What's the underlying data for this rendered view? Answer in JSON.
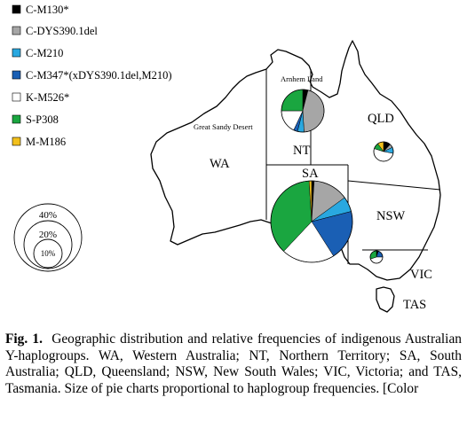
{
  "legend": [
    {
      "label": "C-M130*",
      "color": "#000000"
    },
    {
      "label": "C-DYS390.1del",
      "color": "#a6a6a6"
    },
    {
      "label": "C-M210",
      "color": "#29a8e0"
    },
    {
      "label": "C-M347*(xDYS390.1del,M210)",
      "color": "#1a5fb4"
    },
    {
      "label": "K-M526*",
      "color": "#ffffff"
    },
    {
      "label": "S-P308",
      "color": "#1aa640"
    },
    {
      "label": "M-M186",
      "color": "#f2c01c"
    }
  ],
  "places": {
    "arnhem": "Arnhem Land",
    "gsd": "Great Sandy Desert"
  },
  "states": {
    "wa": "WA",
    "nt": "NT",
    "sa": "SA",
    "qld": "QLD",
    "nsw": "NSW",
    "vic": "VIC",
    "tas": "TAS"
  },
  "scale_key": {
    "large": "40%",
    "medium": "20%",
    "small": "10%"
  },
  "caption": {
    "label": "Fig. 1.",
    "text": "Geographic distribution and relative frequencies of indigenous Australian Y-haplogroups. WA, Western Australia; NT, Northern Territory; SA, South Australia; QLD, Queensland; NSW, New South Wales; VIC, Victoria; and TAS, Tasmania. Size of pie charts proportional to haplogroup frequencies. [Color"
  },
  "chart_data": [
    {
      "type": "pie",
      "region": "NT",
      "relative_size": 0.2,
      "categories": [
        "C-M130*",
        "C-DYS390.1del",
        "C-M210",
        "C-M347*(xDYS390.1del,M210)",
        "K-M526*",
        "S-P308",
        "M-M186"
      ],
      "values": [
        4,
        45,
        5,
        3,
        18,
        25,
        0
      ]
    },
    {
      "type": "pie",
      "region": "SA",
      "relative_size": 0.4,
      "categories": [
        "C-M130*",
        "C-DYS390.1del",
        "C-M210",
        "C-M347*(xDYS390.1del,M210)",
        "K-M526*",
        "S-P308",
        "M-M186"
      ],
      "values": [
        1,
        14,
        6,
        20,
        21,
        37,
        1
      ]
    },
    {
      "type": "pie",
      "region": "QLD",
      "relative_size": 0.09,
      "categories": [
        "C-M130*",
        "C-DYS390.1del",
        "C-M210",
        "C-M347*(xDYS390.1del,M210)",
        "K-M526*",
        "S-P308",
        "M-M186"
      ],
      "values": [
        12,
        6,
        10,
        0,
        52,
        10,
        10
      ]
    },
    {
      "type": "pie",
      "region": "VIC",
      "relative_size": 0.05,
      "categories": [
        "C-M130*",
        "C-DYS390.1del",
        "C-M210",
        "C-M347*(xDYS390.1del,M210)",
        "K-M526*",
        "S-P308",
        "M-M186"
      ],
      "values": [
        5,
        0,
        0,
        20,
        45,
        30,
        0
      ]
    }
  ]
}
